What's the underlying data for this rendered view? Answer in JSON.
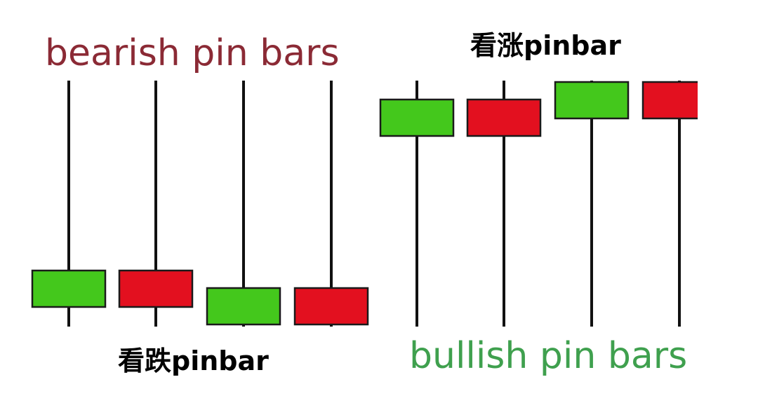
{
  "colors": {
    "wick": "#111111",
    "body_border": "#1a1a1a",
    "green": "#44c81c",
    "red": "#e3101f",
    "bearish_title": "#8b2a35",
    "bullish_title": "#3fa04e"
  },
  "labels": {
    "bearish_title": "bearish pin bars",
    "bullish_title": "bullish pin bars",
    "bearish_cn": "看跌pinbar",
    "bullish_cn": "看涨pinbar"
  },
  "groups": [
    {
      "id": "bearish",
      "candles": [
        {
          "color": "green"
        },
        {
          "color": "red"
        },
        {
          "color": "green"
        },
        {
          "color": "red"
        }
      ]
    },
    {
      "id": "bullish",
      "candles": [
        {
          "color": "green"
        },
        {
          "color": "red"
        },
        {
          "color": "green"
        },
        {
          "color": "red"
        }
      ]
    }
  ]
}
